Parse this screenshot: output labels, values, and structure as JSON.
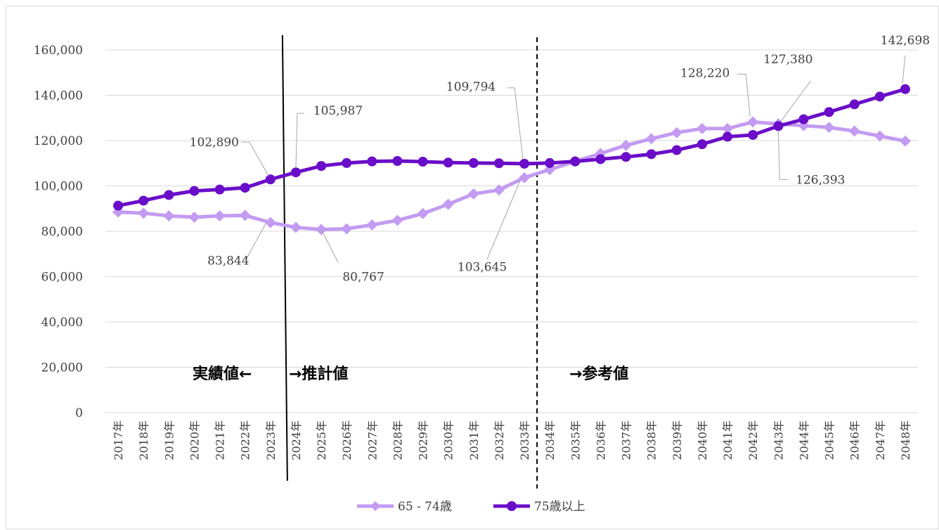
{
  "chart_data": {
    "type": "line",
    "title": "",
    "xlabel": "",
    "ylabel": "",
    "ylim": [
      0,
      160000
    ],
    "yticks": [
      0,
      20000,
      40000,
      60000,
      80000,
      100000,
      120000,
      140000,
      160000
    ],
    "ytick_labels": [
      "0",
      "20,000",
      "40,000",
      "60,000",
      "80,000",
      "100,000",
      "120,000",
      "140,000",
      "160,000"
    ],
    "grid": true,
    "legend_position": "bottom",
    "categories": [
      "2017年",
      "2018年",
      "2019年",
      "2020年",
      "2021年",
      "2022年",
      "2023年",
      "2024年",
      "2025年",
      "2026年",
      "2027年",
      "2028年",
      "2029年",
      "2030年",
      "2031年",
      "2032年",
      "2033年",
      "2034年",
      "2035年",
      "2036年",
      "2037年",
      "2038年",
      "2039年",
      "2040年",
      "2041年",
      "2042年",
      "2043年",
      "2044年",
      "2045年",
      "2046年",
      "2047年",
      "2048年"
    ],
    "series": [
      {
        "name": "65 - 74歳",
        "color": "#c39bf2",
        "marker": "diamond",
        "values": [
          88500,
          88000,
          86800,
          86200,
          86800,
          87000,
          83844,
          81700,
          80767,
          81100,
          82800,
          84800,
          87800,
          91900,
          96500,
          98200,
          103645,
          107200,
          110800,
          114300,
          117900,
          120800,
          123500,
          125300,
          125300,
          128220,
          127380,
          126600,
          125800,
          124200,
          122000,
          119800
        ]
      },
      {
        "name": "75歳以上",
        "color": "#6a0dc8",
        "marker": "circle",
        "values": [
          91300,
          93500,
          96000,
          97800,
          98400,
          99200,
          102890,
          105987,
          108800,
          110100,
          110800,
          111000,
          110700,
          110300,
          110100,
          110000,
          109794,
          110100,
          110800,
          111800,
          112800,
          114000,
          115800,
          118400,
          121700,
          122500,
          126393,
          129400,
          132600,
          136000,
          139400,
          142698
        ]
      }
    ],
    "data_labels": [
      {
        "text": "83,844",
        "series": 0,
        "index": 6
      },
      {
        "text": "80,767",
        "series": 0,
        "index": 8
      },
      {
        "text": "103,645",
        "series": 0,
        "index": 16
      },
      {
        "text": "128,220",
        "series": 0,
        "index": 25
      },
      {
        "text": "127,380",
        "series": 0,
        "index": 26
      },
      {
        "text": "102,890",
        "series": 1,
        "index": 6
      },
      {
        "text": "105,987",
        "series": 1,
        "index": 7
      },
      {
        "text": "109,794",
        "series": 1,
        "index": 16
      },
      {
        "text": "126,393",
        "series": 1,
        "index": 26
      },
      {
        "text": "142,698",
        "series": 1,
        "index": 31
      }
    ],
    "dividers": [
      {
        "style": "solid",
        "between": [
          "2023年",
          "2024年"
        ]
      },
      {
        "style": "dashed",
        "between": [
          "2033年",
          "2034年"
        ]
      }
    ],
    "annotations": [
      "実績値←",
      "→推計値",
      "→参考値"
    ]
  }
}
